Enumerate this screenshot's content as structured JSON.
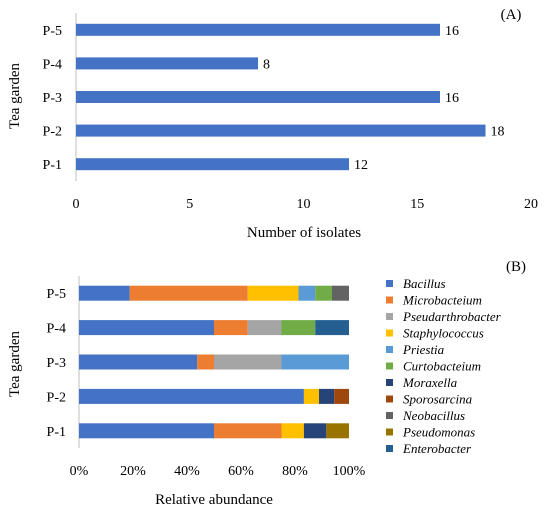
{
  "chart_data": [
    {
      "type": "bar",
      "orientation": "horizontal",
      "panel_label": "(A)",
      "categories": [
        "P-1",
        "P-2",
        "P-3",
        "P-4",
        "P-5"
      ],
      "values": [
        12,
        18,
        16,
        8,
        16
      ],
      "xlabel": "Number of isolates",
      "ylabel": "Tea garden",
      "xlim": [
        0,
        20
      ],
      "xticks": [
        "0",
        "5",
        "10",
        "15",
        "20"
      ],
      "color": "#4472C4",
      "data_labels": true
    },
    {
      "type": "bar",
      "orientation": "horizontal",
      "stacked": "percent",
      "panel_label": "(B)",
      "categories": [
        "P-1",
        "P-2",
        "P-3",
        "P-4",
        "P-5"
      ],
      "xlabel": "Relative abundance",
      "ylabel": "Tea garden",
      "xlim": [
        0,
        100
      ],
      "xticks": [
        "0%",
        "20%",
        "40%",
        "60%",
        "80%",
        "100%"
      ],
      "legend_position": "right",
      "series": [
        {
          "name": "Bacillus",
          "color": "#4472C4",
          "values": [
            50,
            83.3,
            43.8,
            50,
            18.8
          ]
        },
        {
          "name": "Microbacteium",
          "color": "#ED7D31",
          "values": [
            25,
            0,
            6.2,
            12.5,
            43.7
          ]
        },
        {
          "name": "Pseudarthrobacter",
          "color": "#A5A5A5",
          "values": [
            0,
            0,
            25,
            12.5,
            0
          ]
        },
        {
          "name": "Staphylococcus",
          "color": "#FFC000",
          "values": [
            8.3,
            5.6,
            0,
            0,
            18.8
          ]
        },
        {
          "name": "Priestia",
          "color": "#5B9BD5",
          "values": [
            0,
            0,
            25,
            0,
            6.2
          ]
        },
        {
          "name": "Curtobacteium",
          "color": "#70AD47",
          "values": [
            0,
            0,
            0,
            12.5,
            6.2
          ]
        },
        {
          "name": "Moraxella",
          "color": "#264478",
          "values": [
            8.3,
            5.6,
            0,
            0,
            0
          ]
        },
        {
          "name": "Sporosarcina",
          "color": "#9E480E",
          "values": [
            0,
            5.5,
            0,
            0,
            0
          ]
        },
        {
          "name": "Neobacillus",
          "color": "#636363",
          "values": [
            0,
            0,
            0,
            0,
            6.3
          ]
        },
        {
          "name": "Pseudomonas",
          "color": "#997300",
          "values": [
            8.4,
            0,
            0,
            0,
            0
          ]
        },
        {
          "name": "Enterobacter",
          "color": "#255E91",
          "values": [
            0,
            0,
            0,
            12.5,
            0
          ]
        }
      ]
    }
  ]
}
